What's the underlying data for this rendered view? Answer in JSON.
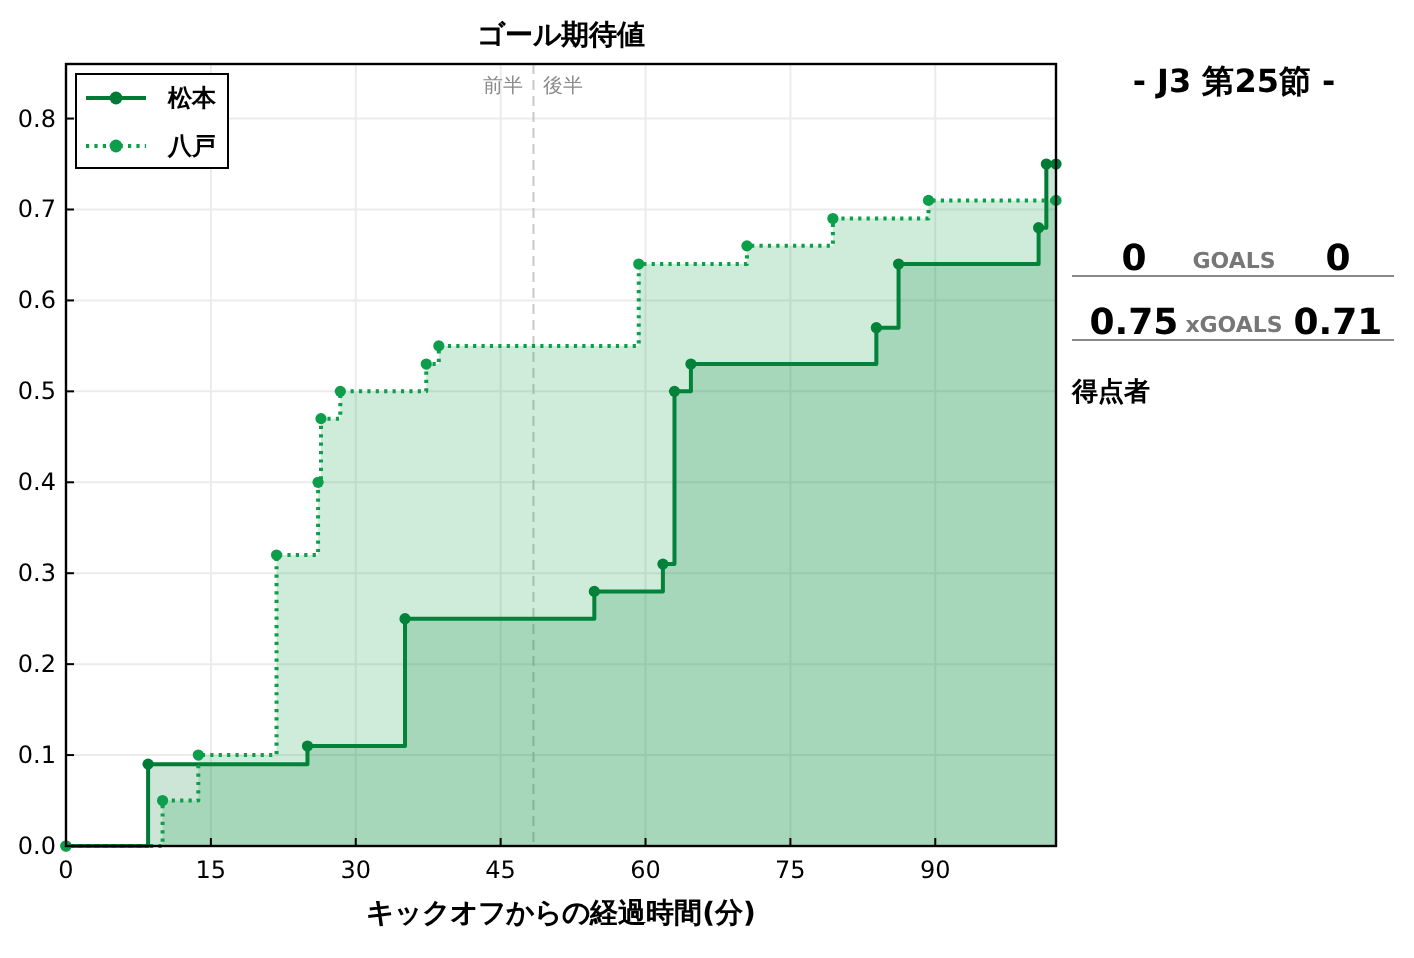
{
  "chart_data": [
    {
      "type": "step",
      "title": "ゴール期待値",
      "xlabel": "キックオフからの経過時間(分)",
      "xlim": [
        0,
        102.5
      ],
      "xticks": [
        0,
        15,
        30,
        45,
        60,
        75,
        90
      ],
      "ylim": [
        0,
        0.86
      ],
      "yticks": [
        {
          "value": 0,
          "label": "0.0"
        },
        0.1,
        0.2,
        0.3,
        0.4,
        0.5,
        0.6,
        0.7,
        0.8
      ],
      "grid": true,
      "legend": "top left",
      "marker": "circle",
      "series": [
        {
          "name": "松本",
          "color": "#007b35",
          "line_style": "solid",
          "x": [
            0,
            8.5,
            25.0,
            35.1,
            54.7,
            61.8,
            63.0,
            64.7,
            83.9,
            86.2,
            100.7,
            101.5,
            102.5
          ],
          "values": [
            0,
            0.09,
            0.11,
            0.25,
            0.28,
            0.31,
            0.5,
            0.53,
            0.57,
            0.64,
            0.68,
            0.75,
            0.75
          ]
        },
        {
          "name": "八戸",
          "color": "#0d9e4b",
          "line_style": "dotted",
          "x": [
            0,
            10.0,
            13.7,
            21.8,
            26.1,
            26.4,
            28.4,
            37.3,
            38.6,
            59.3,
            70.5,
            79.4,
            89.3,
            102.5
          ],
          "values": [
            0,
            0.05,
            0.1,
            0.32,
            0.4,
            0.47,
            0.5,
            0.53,
            0.55,
            0.64,
            0.66,
            0.69,
            0.71,
            0.71
          ]
        }
      ],
      "ref_lines": [
        {
          "axis": "x",
          "value": 48.4,
          "color": "#c8c8c8",
          "line_style": "dashed"
        }
      ],
      "annotations": [
        "前半",
        "後半"
      ]
    },
    {
      "type": "other",
      "title": "- J3 第25節 -",
      "categories": [
        "GOALS",
        "xGOALS"
      ],
      "series": [
        {
          "values": [
            0,
            0.75
          ]
        },
        {
          "values": [
            0,
            0.71
          ]
        }
      ],
      "data_labels": true,
      "annotations": [
        "得点者"
      ]
    }
  ]
}
